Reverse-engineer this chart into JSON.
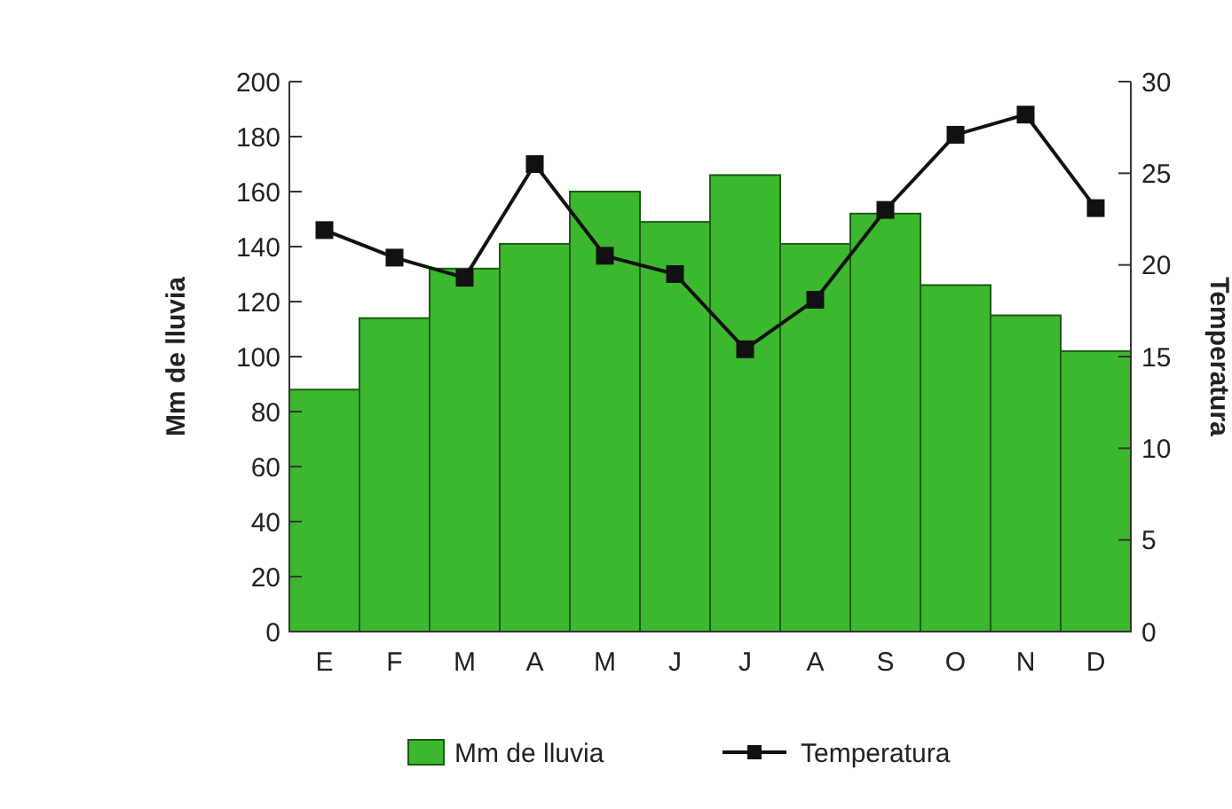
{
  "chart_data": {
    "type": "bar",
    "categories": [
      "E",
      "F",
      "M",
      "A",
      "M",
      "J",
      "J",
      "A",
      "S",
      "O",
      "N",
      "D"
    ],
    "ylabel": "Mm de lluvia",
    "y2label": "Temperatura",
    "ylim": [
      0,
      200
    ],
    "yticks": [
      0,
      20,
      40,
      60,
      80,
      100,
      120,
      140,
      160,
      180,
      200
    ],
    "y2lim": [
      0,
      30
    ],
    "y2ticks": [
      0,
      5,
      10,
      15,
      20,
      25,
      30
    ],
    "legend": "bottom",
    "grid": false,
    "series": [
      {
        "name": "Mm de lluvia",
        "color": "#3cb82e",
        "values": [
          88,
          114,
          132,
          141,
          160,
          149,
          166,
          141,
          152,
          126,
          115,
          102
        ]
      },
      {
        "name": "Temperatura",
        "type": "line",
        "axis": "y2",
        "color": "#111111",
        "marker": "square",
        "values": [
          21.9,
          20.4,
          19.3,
          25.5,
          20.5,
          19.5,
          15.4,
          18.1,
          23,
          27.1,
          28.2,
          23.1
        ]
      }
    ]
  }
}
